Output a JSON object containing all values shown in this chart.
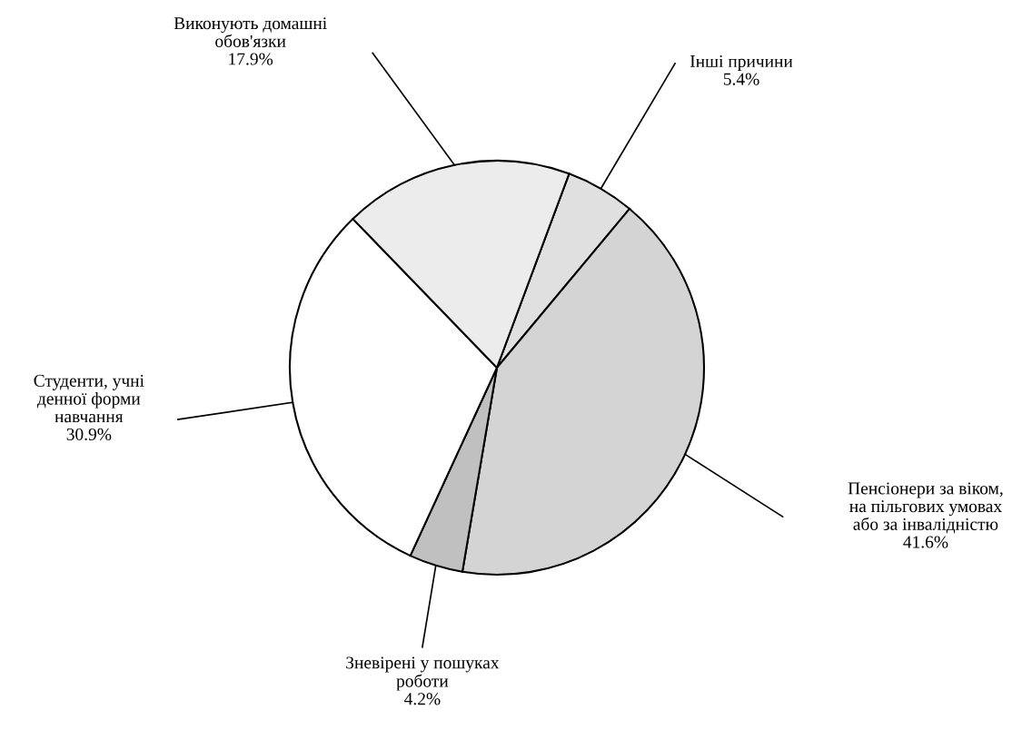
{
  "chart_data": {
    "type": "pie",
    "categories": [
      "Інші причини",
      "Пенсіонери за віком,\nна пільгових умовах\nабо за інвалідністю",
      "Зневірені у пошуках\nроботи",
      "Студенти, учні\nденної форми\nнавчання",
      "Виконують домашні\nобов'язки"
    ],
    "values": [
      5.4,
      41.6,
      4.2,
      30.9,
      17.9
    ],
    "colors": [
      "#e0e0e0",
      "#d4d4d4",
      "#c0c0c0",
      "#ffffff",
      "#ececec"
    ],
    "value_labels": [
      "5.4%",
      "41.6%",
      "4.2%",
      "30.9%",
      "17.9%"
    ]
  }
}
